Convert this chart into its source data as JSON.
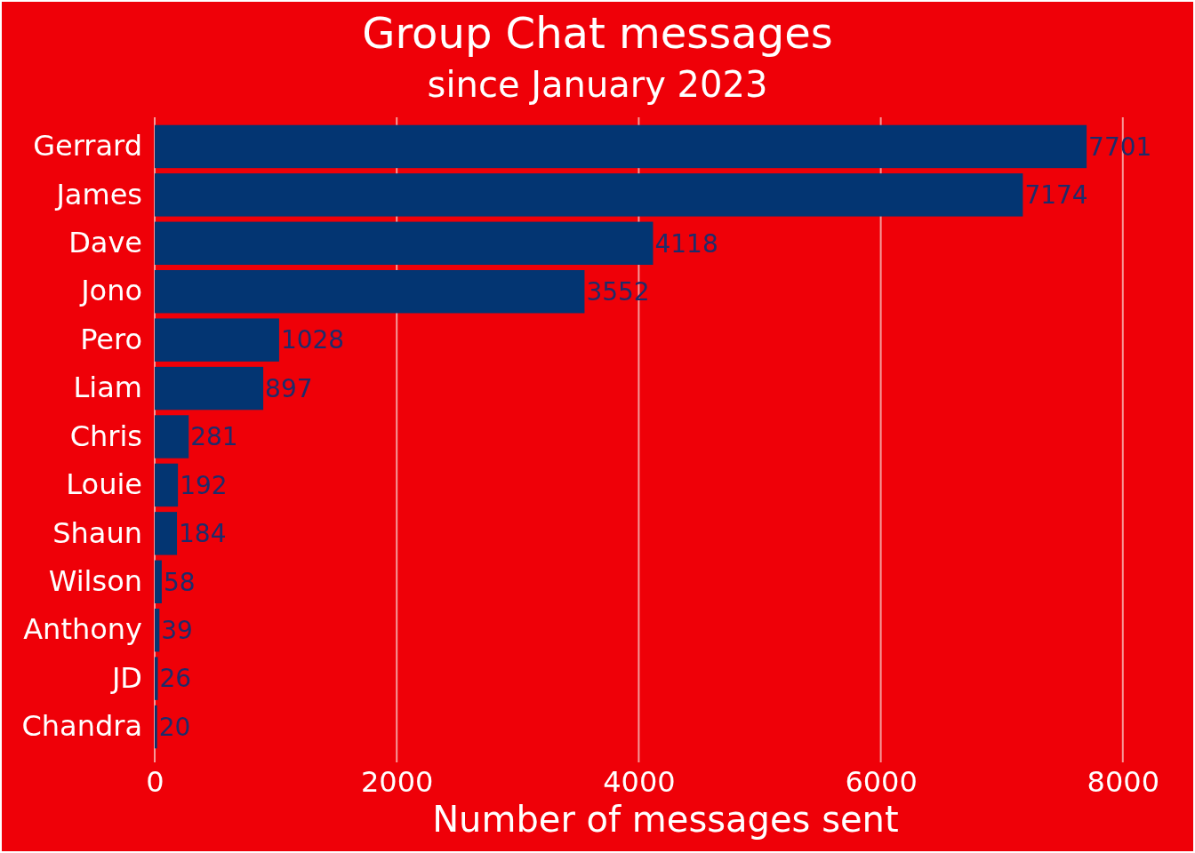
{
  "chart_data": {
    "type": "bar",
    "orientation": "horizontal",
    "title": "Group Chat messages",
    "subtitle": "since January 2023",
    "xlabel": "Number of messages sent",
    "categories": [
      "Gerrard",
      "James",
      "Dave",
      "Jono",
      "Pero",
      "Liam",
      "Chris",
      "Louie",
      "Shaun",
      "Wilson",
      "Anthony",
      "JD",
      "Chandra"
    ],
    "values": [
      7701,
      7174,
      4118,
      3552,
      1028,
      897,
      281,
      192,
      184,
      58,
      39,
      26,
      20
    ],
    "color": "#033572",
    "data_labels": true,
    "grid": "x",
    "xlim": [
      0,
      8000
    ],
    "xticks": [
      0,
      2000,
      4000,
      6000,
      8000
    ]
  }
}
